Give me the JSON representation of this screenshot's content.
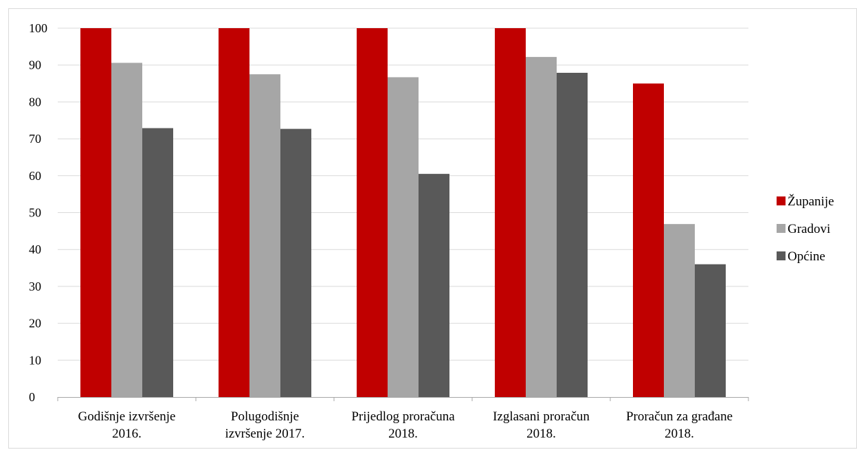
{
  "caption": "",
  "chart_data": {
    "type": "bar",
    "categories": [
      [
        "Godišnje izvršenje",
        "2016."
      ],
      [
        "Polugodišnje",
        "izvršenje 2017."
      ],
      [
        "Prijedlog proračuna",
        "2018."
      ],
      [
        "Izglasani proračun",
        "2018."
      ],
      [
        "Proračun za građane",
        "2018."
      ]
    ],
    "series": [
      {
        "name": "Županije",
        "color": "#c00000",
        "values": [
          100,
          100,
          100,
          100,
          85
        ]
      },
      {
        "name": "Gradovi",
        "color": "#a6a6a6",
        "values": [
          90.6,
          87.5,
          86.7,
          92.2,
          46.9
        ]
      },
      {
        "name": "Općine",
        "color": "#595959",
        "values": [
          72.9,
          72.7,
          60.5,
          87.9,
          36
        ]
      }
    ],
    "yticks": [
      "0",
      "10",
      "20",
      "30",
      "40",
      "50",
      "60",
      "70",
      "80",
      "90",
      "100"
    ],
    "ylim": [
      0,
      100
    ],
    "grid": true,
    "legend_position": "right",
    "title": "",
    "xlabel": "",
    "ylabel": ""
  }
}
